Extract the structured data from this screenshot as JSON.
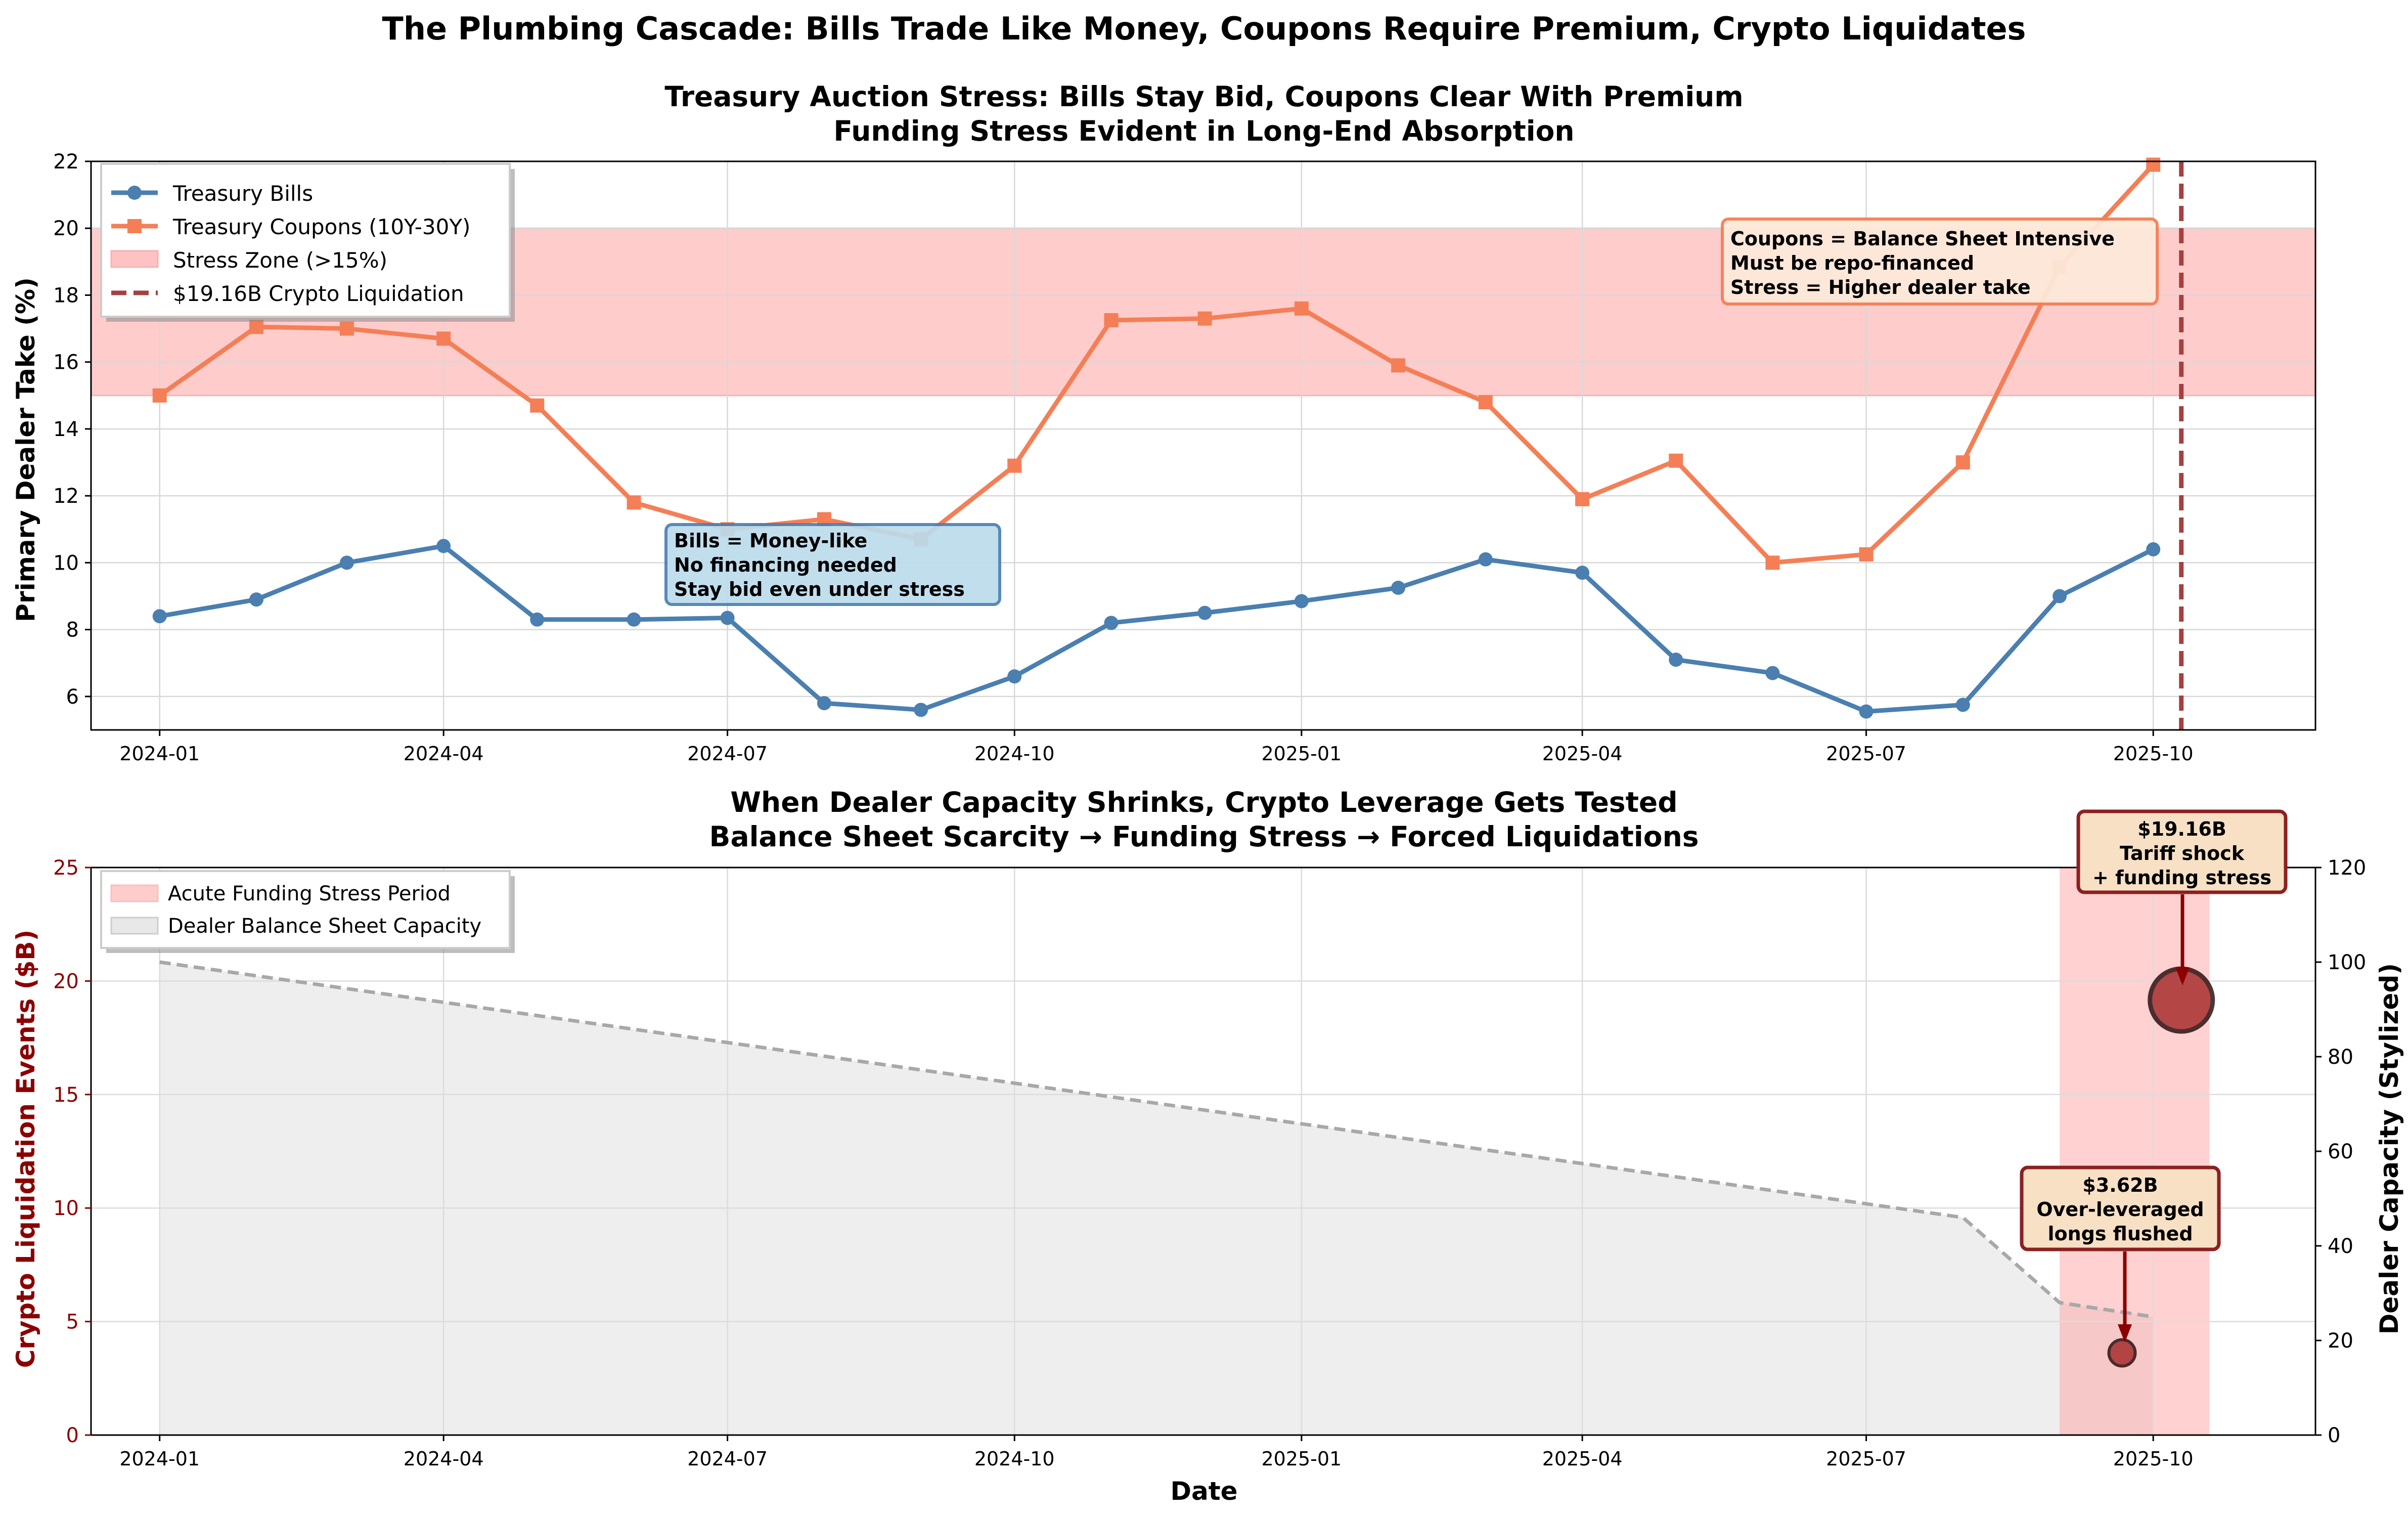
{
  "figure": {
    "suptitle": "The Plumbing Cascade: Bills Trade Like Money, Coupons Require Premium, Crypto Liquidates"
  },
  "chart_data": [
    {
      "type": "line",
      "title": "Treasury Auction Stress: Bills Stay Bid, Coupons Clear With Premium",
      "subtitle": "Funding Stress Evident in Long-End Absorption",
      "xlabel": "",
      "ylabel": "Primary Dealer Take (%)",
      "ylim": [
        5,
        22
      ],
      "yticks": [
        6,
        8,
        10,
        12,
        14,
        16,
        18,
        20,
        22
      ],
      "xlim": [
        "2023-12-10",
        "2025-11-22"
      ],
      "xticks": [
        "2024-01",
        "2024-04",
        "2024-07",
        "2024-10",
        "2025-01",
        "2025-04",
        "2025-07",
        "2025-10"
      ],
      "grid": true,
      "legend_position": "top-left",
      "x": [
        "2024-01-01",
        "2024-02-01",
        "2024-03-01",
        "2024-04-01",
        "2024-05-01",
        "2024-06-01",
        "2024-07-01",
        "2024-08-01",
        "2024-09-01",
        "2024-10-01",
        "2024-11-01",
        "2024-12-01",
        "2025-01-01",
        "2025-02-01",
        "2025-03-01",
        "2025-04-01",
        "2025-05-01",
        "2025-06-01",
        "2025-07-01",
        "2025-08-01",
        "2025-09-01",
        "2025-10-01"
      ],
      "series": [
        {
          "name": "Treasury Bills",
          "color": "#4a7fb0",
          "marker": "circle",
          "values": [
            8.4,
            8.9,
            10.0,
            10.5,
            8.3,
            8.3,
            8.35,
            5.8,
            5.6,
            6.6,
            8.2,
            8.5,
            8.85,
            9.25,
            10.1,
            9.7,
            7.1,
            6.7,
            5.55,
            5.75,
            9.0,
            10.4
          ]
        },
        {
          "name": "Treasury Coupons (10Y-30Y)",
          "color": "#f47f56",
          "marker": "square",
          "values": [
            15.0,
            17.05,
            17.0,
            16.7,
            14.7,
            11.8,
            11.0,
            11.3,
            10.7,
            12.9,
            17.25,
            17.3,
            17.6,
            15.9,
            14.8,
            11.9,
            13.05,
            10.0,
            10.25,
            13.0,
            18.85,
            21.9
          ]
        }
      ],
      "bands": [
        {
          "name": "Stress Zone (>15%)",
          "from": 15,
          "to": 20,
          "color": "#ff9a9a"
        }
      ],
      "vlines": [
        {
          "name": "$19.16B Crypto Liquidation",
          "x": "2025-10-10",
          "color": "#a63f3f"
        }
      ],
      "annotations": [
        {
          "lines": [
            "Bills = Money-like",
            "No financing needed",
            "Stay bid even under stress"
          ],
          "box_color": "#bcdcec",
          "edge_color": "#4a7fb0"
        },
        {
          "lines": [
            "Coupons = Balance Sheet Intensive",
            "Must be repo-financed",
            "Stress = Higher dealer take"
          ],
          "box_color": "#fde9d9",
          "edge_color": "#f47f56"
        }
      ]
    },
    {
      "type": "scatter",
      "title": "When Dealer Capacity Shrinks, Crypto Leverage Gets Tested",
      "subtitle": "Balance Sheet Scarcity → Funding Stress → Forced Liquidations",
      "xlabel": "Date",
      "ylabel": "Crypto Liquidation Events ($B)",
      "ylabel_right": "Dealer Capacity (Stylized)",
      "ylim": [
        0,
        25
      ],
      "ylim_right": [
        0,
        120
      ],
      "yticks": [
        0,
        5,
        10,
        15,
        20,
        25
      ],
      "yticks_right": [
        0,
        20,
        40,
        60,
        80,
        100,
        120
      ],
      "xlim": [
        "2023-12-10",
        "2025-11-22"
      ],
      "xticks": [
        "2024-01",
        "2024-04",
        "2024-07",
        "2024-10",
        "2025-01",
        "2025-04",
        "2025-07",
        "2025-10"
      ],
      "grid": true,
      "legend_position": "top-left",
      "legend": [
        "Acute Funding Stress Period",
        "Dealer Balance Sheet Capacity"
      ],
      "stress_period": {
        "from": "2025-09-01",
        "to": "2025-10-19",
        "color": "#ff9a9a"
      },
      "capacity": {
        "color": "#a8a8a8",
        "x": [
          "2024-01-01",
          "2025-08-01",
          "2025-09-01",
          "2025-10-01"
        ],
        "values": [
          100,
          46,
          28,
          25
        ]
      },
      "events": [
        {
          "x": "2025-09-21",
          "value": 3.62,
          "label_lines": [
            "$3.62B",
            "Over-leveraged",
            "longs flushed"
          ]
        },
        {
          "x": "2025-10-10",
          "value": 19.16,
          "label_lines": [
            "$19.16B",
            "Tariff shock",
            "+ funding stress"
          ]
        }
      ],
      "event_color": "#a02020"
    }
  ]
}
